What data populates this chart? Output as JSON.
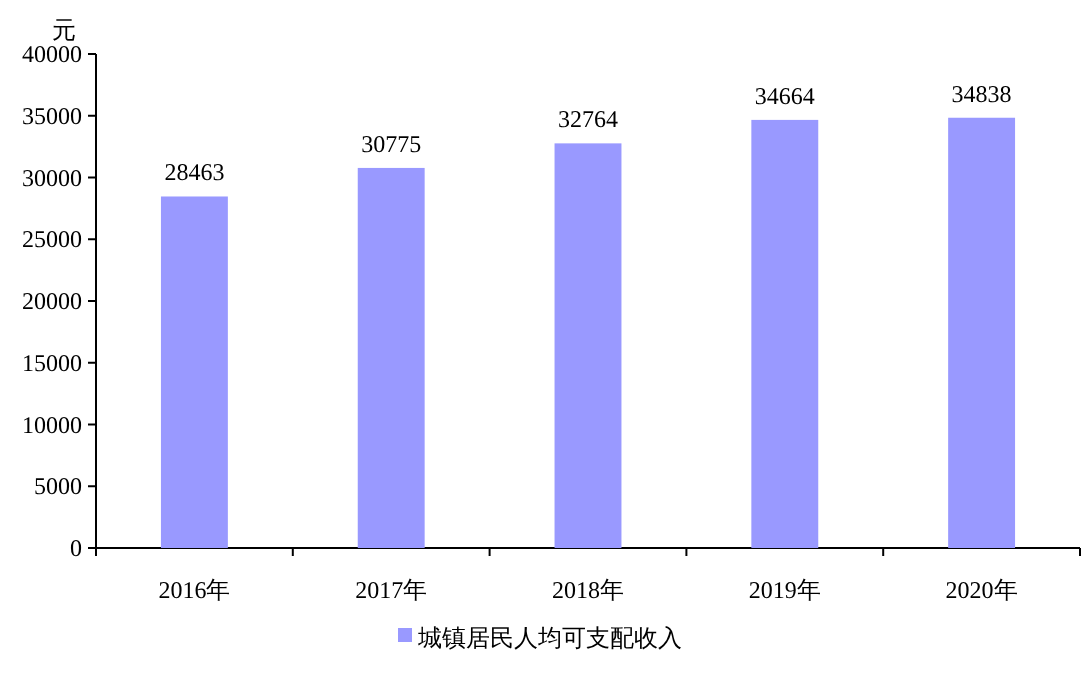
{
  "chart_data": {
    "type": "bar",
    "ylabel": "元",
    "categories": [
      "2016年",
      "2017年",
      "2018年",
      "2019年",
      "2020年"
    ],
    "series": [
      {
        "name": "城镇居民人均可支配收入",
        "color": "#9999ff",
        "values": [
          28463,
          30775,
          32764,
          34664,
          34838
        ]
      }
    ],
    "ylim": [
      0,
      40000
    ],
    "yticks": [
      0,
      5000,
      10000,
      15000,
      20000,
      25000,
      30000,
      35000,
      40000
    ],
    "data_labels": true,
    "legend": "bottom"
  }
}
